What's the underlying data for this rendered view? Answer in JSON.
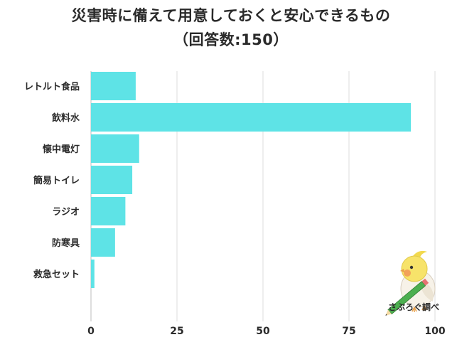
{
  "header": {
    "title_line1": "災害時に備えて用意しておくと安心できるもの",
    "title_line2": "（回答数:150）"
  },
  "brand": {
    "label": "さぶろぐ調べ",
    "icon": "bird-with-pencil-icon"
  },
  "chart_data": {
    "type": "bar",
    "orientation": "horizontal",
    "categories": [
      "レトルト食品",
      "飲料水",
      "懐中電灯",
      "簡易トイレ",
      "ラジオ",
      "防寒具",
      "救急セット"
    ],
    "values": [
      13,
      93,
      14,
      12,
      10,
      7,
      1
    ],
    "xlim": [
      0,
      100
    ],
    "xticks": [
      0,
      25,
      50,
      75,
      100
    ],
    "xtick_labels": [
      "0",
      "25",
      "50",
      "75",
      "100"
    ],
    "grid": true,
    "bar_color": "#5ee3e6"
  }
}
